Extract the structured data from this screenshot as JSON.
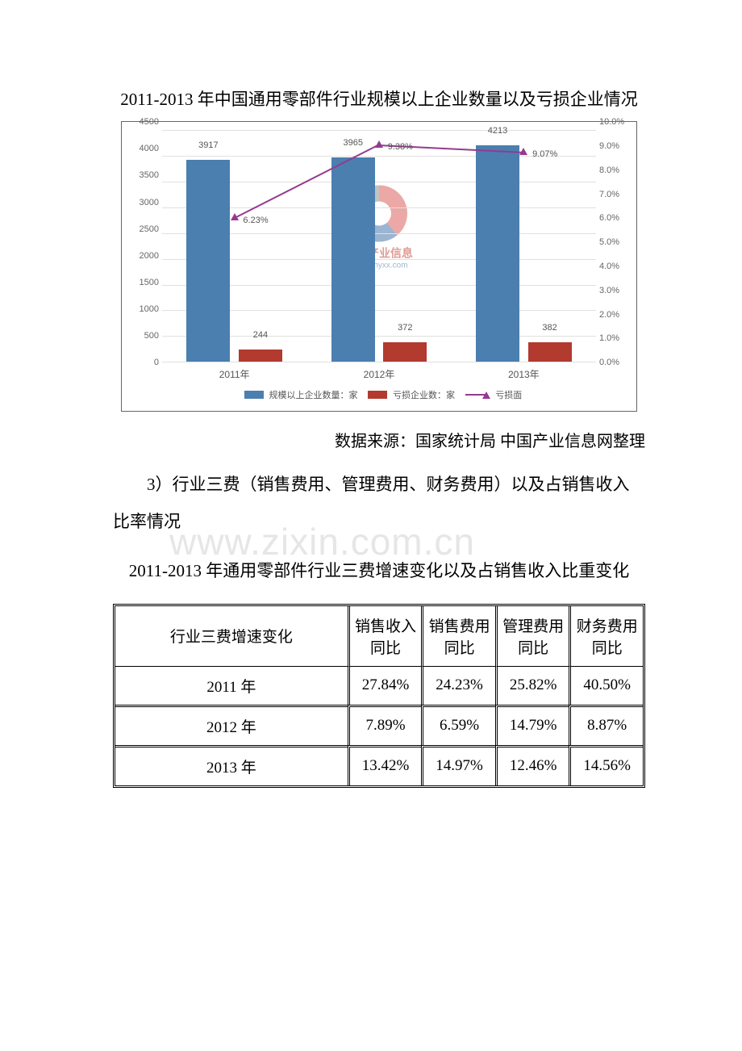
{
  "title_chart": "2011-2013 年中国通用零部件行业规模以上企业数量以及亏损企业情况",
  "chart": {
    "type": "bar+line",
    "categories": [
      "2011年",
      "2012年",
      "2013年"
    ],
    "series_bar1": {
      "label": "规模以上企业数量：家",
      "values": [
        3917,
        3965,
        4213
      ],
      "color": "#4a7fb0"
    },
    "series_bar2": {
      "label": "亏损企业数：家",
      "values": [
        244,
        372,
        382
      ],
      "color": "#b23a2f"
    },
    "series_line": {
      "label": "亏损面",
      "values": [
        6.23,
        9.38,
        9.07
      ],
      "color": "#953a8f",
      "marker": "triangle"
    },
    "y_left": {
      "min": 0,
      "max": 4500,
      "step": 500
    },
    "y_right": {
      "min": 0,
      "max": 10,
      "step": 1,
      "suffix": "%"
    },
    "grid_color": "#e0e0e0",
    "background": "#ffffff",
    "bar_width_pct": 10,
    "first_pt_label": "6.23%",
    "pt_labels": [
      "6.23%",
      "9.38%",
      "9.07%"
    ],
    "watermark": {
      "text": "中国产业信息",
      "url": "www.chyxx.com"
    }
  },
  "source_line": "数据来源：国家统计局 中国产业信息网整理",
  "big_watermark": "www.zixin.com.cn",
  "para_3": "3）行业三费（销售费用、管理费用、财务费用）以及占销售收入比率情况",
  "title_table": "2011-2013 年通用零部件行业三费增速变化以及占销售收入比重变化",
  "table": {
    "header": [
      "行业三费增速变化",
      "销售收入同比",
      "销售费用同比",
      "管理费用同比",
      "财务费用同比"
    ],
    "rows": [
      [
        "2011 年",
        "27.84%",
        "24.23%",
        "25.82%",
        "40.50%"
      ],
      [
        "2012 年",
        "7.89%",
        "6.59%",
        "14.79%",
        "8.87%"
      ],
      [
        "2013 年",
        "13.42%",
        "14.97%",
        "12.46%",
        "14.56%"
      ]
    ]
  }
}
